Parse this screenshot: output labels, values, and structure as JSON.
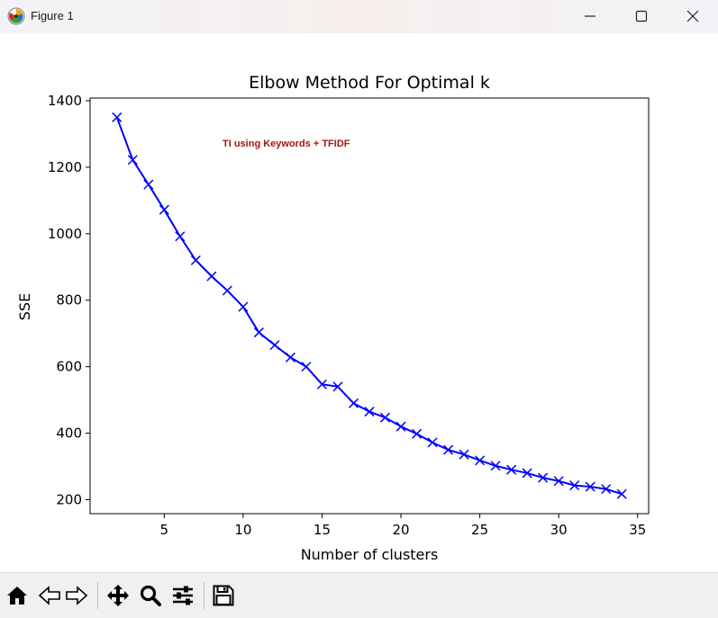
{
  "window": {
    "title": "Figure 1",
    "icons": {
      "app": "matplotlib-icon",
      "minimize": "minimize-icon",
      "maximize": "maximize-icon",
      "close": "close-icon"
    }
  },
  "toolbar": {
    "buttons": [
      {
        "name": "home-icon"
      },
      {
        "name": "back-arrow-icon"
      },
      {
        "name": "forward-arrow-icon"
      },
      {
        "name": "pan-icon"
      },
      {
        "name": "zoom-icon"
      },
      {
        "name": "configure-subplots-icon"
      },
      {
        "name": "save-icon"
      }
    ]
  },
  "chart_data": {
    "type": "line",
    "title": "Elbow Method For Optimal k",
    "xlabel": "Number of clusters",
    "ylabel": "SSE",
    "annotation": "TI using Keywords + TFIDF",
    "annotation_color": "#a31515",
    "line_color": "#0000ff",
    "marker": "x",
    "grid": false,
    "xlim": [
      0.3,
      35.7
    ],
    "ylim": [
      158,
      1408
    ],
    "xticks": [
      5,
      10,
      15,
      20,
      25,
      30,
      35
    ],
    "yticks": [
      200,
      400,
      600,
      800,
      1000,
      1200,
      1400
    ],
    "x": [
      2,
      3,
      4,
      5,
      6,
      7,
      8,
      9,
      10,
      11,
      12,
      13,
      14,
      15,
      16,
      17,
      18,
      19,
      20,
      21,
      22,
      23,
      24,
      25,
      26,
      27,
      28,
      29,
      30,
      31,
      32,
      33,
      34
    ],
    "y": [
      1350,
      1222,
      1148,
      1072,
      992,
      920,
      872,
      829,
      780,
      703,
      665,
      628,
      600,
      547,
      540,
      490,
      465,
      447,
      420,
      398,
      372,
      350,
      336,
      318,
      302,
      290,
      280,
      266,
      256,
      243,
      239,
      232,
      217
    ]
  }
}
